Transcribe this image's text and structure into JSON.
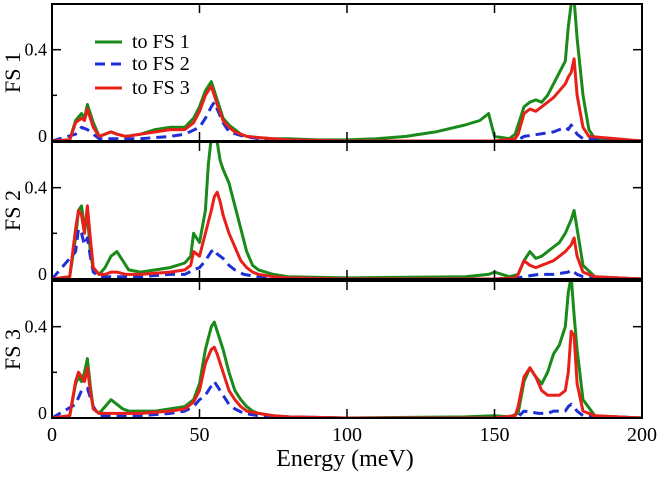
{
  "chart_data": {
    "type": "line",
    "xlabel": "Energy (meV)",
    "xlim": [
      0,
      200
    ],
    "xticks": [
      0,
      50,
      100,
      150,
      200
    ],
    "ylim": [
      0,
      0.6
    ],
    "yticks": [
      0,
      0.4
    ],
    "legend": {
      "location": "top-left of top panel",
      "entries": [
        "to  FS 1",
        "to  FS 2",
        "to  FS 3"
      ]
    },
    "panels": [
      {
        "ylabel": "FS 1",
        "series": [
          {
            "name": "to  FS 1",
            "color": "#1a8a1a",
            "style": "solid",
            "x": [
              0,
              6,
              8,
              10,
              11,
              12,
              14,
              16,
              20,
              22,
              25,
              30,
              35,
              40,
              45,
              48,
              50,
              52,
              54,
              55,
              56,
              58,
              60,
              62,
              64,
              66,
              70,
              75,
              80,
              90,
              100,
              110,
              120,
              130,
              140,
              145,
              148,
              150,
              155,
              157,
              160,
              162,
              164,
              166,
              168,
              170,
              172,
              174,
              175,
              176,
              177,
              178,
              180,
              182,
              184,
              200
            ],
            "y": [
              0,
              0.005,
              0.09,
              0.12,
              0.1,
              0.16,
              0.08,
              0.02,
              0.04,
              0.03,
              0.02,
              0.03,
              0.05,
              0.06,
              0.06,
              0.1,
              0.15,
              0.22,
              0.26,
              0.22,
              0.18,
              0.1,
              0.07,
              0.05,
              0.03,
              0.02,
              0.015,
              0.01,
              0.01,
              0.005,
              0.005,
              0.01,
              0.02,
              0.04,
              0.07,
              0.09,
              0.12,
              0.02,
              0.01,
              0.03,
              0.15,
              0.17,
              0.18,
              0.17,
              0.2,
              0.25,
              0.3,
              0.35,
              0.5,
              0.6,
              0.62,
              0.45,
              0.2,
              0.05,
              0.01,
              0
            ]
          },
          {
            "name": "to  FS 2",
            "color": "#1f2fd6",
            "style": "dashed",
            "x": [
              0,
              8,
              10,
              12,
              14,
              16,
              20,
              30,
              40,
              45,
              50,
              52,
              54,
              55,
              56,
              58,
              60,
              65,
              70,
              80,
              100,
              150,
              158,
              160,
              165,
              170,
              172,
              174,
              175,
              176,
              178,
              180,
              200
            ],
            "y": [
              0,
              0.03,
              0.06,
              0.05,
              0.03,
              0.01,
              0.01,
              0.01,
              0.02,
              0.03,
              0.06,
              0.1,
              0.15,
              0.17,
              0.14,
              0.08,
              0.04,
              0.02,
              0.01,
              0.005,
              0,
              0,
              0.005,
              0.02,
              0.03,
              0.04,
              0.05,
              0.06,
              0.05,
              0.07,
              0.03,
              0.01,
              0
            ]
          },
          {
            "name": "to  FS 3",
            "color": "#e8201a",
            "style": "solid",
            "x": [
              0,
              6,
              8,
              10,
              11,
              12,
              14,
              16,
              20,
              22,
              25,
              30,
              35,
              40,
              45,
              48,
              50,
              52,
              54,
              55,
              56,
              58,
              60,
              62,
              64,
              66,
              70,
              75,
              80,
              100,
              150,
              157,
              158,
              160,
              162,
              164,
              166,
              168,
              170,
              172,
              174,
              175,
              176,
              177,
              178,
              180,
              182,
              200
            ],
            "y": [
              0,
              0.005,
              0.08,
              0.1,
              0.09,
              0.14,
              0.06,
              0.02,
              0.04,
              0.03,
              0.02,
              0.03,
              0.04,
              0.05,
              0.05,
              0.08,
              0.13,
              0.2,
              0.24,
              0.2,
              0.16,
              0.09,
              0.06,
              0.04,
              0.03,
              0.02,
              0.015,
              0.01,
              0.005,
              0,
              0,
              0.01,
              0.03,
              0.12,
              0.14,
              0.13,
              0.15,
              0.17,
              0.19,
              0.22,
              0.25,
              0.28,
              0.3,
              0.36,
              0.2,
              0.06,
              0.02,
              0
            ]
          }
        ]
      },
      {
        "ylabel": "FS 2",
        "series": [
          {
            "name": "to  FS 1",
            "color": "#1a8a1a",
            "style": "solid",
            "x": [
              0,
              6,
              8,
              9,
              10,
              11,
              12,
              13,
              14,
              16,
              18,
              20,
              22,
              24,
              26,
              30,
              35,
              40,
              45,
              47,
              48,
              50,
              52,
              53,
              54,
              55,
              56,
              57,
              58,
              60,
              62,
              64,
              66,
              68,
              70,
              75,
              80,
              100,
              140,
              148,
              150,
              155,
              158,
              160,
              162,
              164,
              166,
              168,
              170,
              172,
              174,
              176,
              177,
              178,
              180,
              184,
              200
            ],
            "y": [
              0,
              0.01,
              0.18,
              0.3,
              0.32,
              0.22,
              0.28,
              0.12,
              0.04,
              0.02,
              0.05,
              0.1,
              0.12,
              0.08,
              0.04,
              0.03,
              0.04,
              0.05,
              0.07,
              0.1,
              0.2,
              0.16,
              0.3,
              0.5,
              0.62,
              0.66,
              0.6,
              0.52,
              0.48,
              0.42,
              0.32,
              0.22,
              0.12,
              0.06,
              0.04,
              0.02,
              0.01,
              0.005,
              0.01,
              0.02,
              0.03,
              0.01,
              0.02,
              0.08,
              0.12,
              0.09,
              0.1,
              0.12,
              0.14,
              0.16,
              0.2,
              0.26,
              0.3,
              0.22,
              0.06,
              0.01,
              0
            ]
          },
          {
            "name": "to  FS 2",
            "color": "#1f2fd6",
            "style": "dashed",
            "x": [
              0,
              8,
              9,
              10,
              11,
              12,
              13,
              14,
              16,
              20,
              25,
              30,
              40,
              45,
              48,
              50,
              52,
              54,
              55,
              56,
              58,
              60,
              62,
              65,
              70,
              80,
              100,
              150,
              158,
              160,
              165,
              170,
              175,
              176,
              178,
              180,
              200
            ],
            "y": [
              0,
              0.12,
              0.22,
              0.2,
              0.15,
              0.18,
              0.1,
              0.03,
              0.01,
              0.01,
              0.01,
              0.01,
              0.02,
              0.02,
              0.04,
              0.05,
              0.08,
              0.12,
              0.13,
              0.11,
              0.09,
              0.06,
              0.04,
              0.02,
              0.01,
              0.005,
              0,
              0,
              0.005,
              0.01,
              0.02,
              0.02,
              0.03,
              0.04,
              0.02,
              0.01,
              0
            ]
          },
          {
            "name": "to  FS 3",
            "color": "#e8201a",
            "style": "solid",
            "x": [
              0,
              6,
              8,
              9,
              10,
              11,
              12,
              13,
              14,
              16,
              18,
              20,
              22,
              25,
              30,
              40,
              45,
              47,
              48,
              50,
              52,
              54,
              55,
              56,
              57,
              58,
              60,
              62,
              64,
              66,
              68,
              70,
              75,
              80,
              100,
              150,
              157,
              158,
              160,
              162,
              164,
              166,
              168,
              170,
              172,
              174,
              176,
              177,
              178,
              180,
              184,
              200
            ],
            "y": [
              0,
              0.01,
              0.22,
              0.3,
              0.28,
              0.2,
              0.32,
              0.18,
              0.05,
              0.02,
              0.02,
              0.03,
              0.03,
              0.02,
              0.02,
              0.03,
              0.04,
              0.06,
              0.12,
              0.1,
              0.2,
              0.3,
              0.36,
              0.38,
              0.34,
              0.28,
              0.2,
              0.14,
              0.08,
              0.05,
              0.03,
              0.02,
              0.01,
              0.005,
              0,
              0,
              0.005,
              0.02,
              0.08,
              0.06,
              0.05,
              0.06,
              0.07,
              0.08,
              0.1,
              0.12,
              0.15,
              0.18,
              0.1,
              0.03,
              0.01,
              0
            ]
          }
        ]
      },
      {
        "ylabel": "FS 3",
        "series": [
          {
            "name": "to  FS 1",
            "color": "#1a8a1a",
            "style": "solid",
            "x": [
              0,
              6,
              8,
              9,
              10,
              11,
              12,
              13,
              14,
              16,
              18,
              20,
              22,
              24,
              26,
              30,
              35,
              40,
              45,
              48,
              50,
              52,
              54,
              55,
              56,
              58,
              60,
              62,
              64,
              66,
              68,
              70,
              75,
              80,
              100,
              140,
              150,
              155,
              158,
              160,
              162,
              164,
              166,
              168,
              170,
              172,
              174,
              175,
              176,
              177,
              178,
              180,
              184,
              200
            ],
            "y": [
              0,
              0.01,
              0.15,
              0.18,
              0.16,
              0.2,
              0.26,
              0.14,
              0.04,
              0.02,
              0.05,
              0.08,
              0.06,
              0.04,
              0.03,
              0.03,
              0.03,
              0.04,
              0.05,
              0.08,
              0.15,
              0.3,
              0.4,
              0.42,
              0.38,
              0.3,
              0.2,
              0.12,
              0.08,
              0.05,
              0.03,
              0.02,
              0.01,
              0.005,
              0,
              0.005,
              0.01,
              0.005,
              0.02,
              0.16,
              0.22,
              0.18,
              0.15,
              0.2,
              0.28,
              0.32,
              0.4,
              0.55,
              0.62,
              0.45,
              0.3,
              0.08,
              0.01,
              0
            ]
          },
          {
            "name": "to  FS 2",
            "color": "#1f2fd6",
            "style": "dashed",
            "x": [
              0,
              8,
              10,
              12,
              14,
              16,
              20,
              30,
              40,
              45,
              48,
              50,
              52,
              54,
              55,
              56,
              58,
              60,
              62,
              65,
              70,
              80,
              100,
              150,
              158,
              160,
              165,
              168,
              170,
              174,
              175,
              176,
              178,
              180,
              200
            ],
            "y": [
              0,
              0.06,
              0.12,
              0.13,
              0.05,
              0.01,
              0.01,
              0.01,
              0.02,
              0.03,
              0.05,
              0.08,
              0.1,
              0.14,
              0.16,
              0.14,
              0.1,
              0.06,
              0.04,
              0.02,
              0.01,
              0.005,
              0,
              0,
              0.005,
              0.03,
              0.02,
              0.02,
              0.03,
              0.03,
              0.05,
              0.06,
              0.03,
              0.01,
              0
            ]
          },
          {
            "name": "to  FS 3",
            "color": "#e8201a",
            "style": "solid",
            "x": [
              0,
              6,
              8,
              9,
              10,
              11,
              12,
              13,
              14,
              16,
              18,
              20,
              22,
              25,
              30,
              40,
              45,
              48,
              50,
              52,
              54,
              55,
              56,
              58,
              60,
              62,
              64,
              66,
              70,
              75,
              80,
              100,
              150,
              157,
              158,
              160,
              162,
              164,
              166,
              168,
              170,
              172,
              174,
              175,
              176,
              177,
              178,
              180,
              184,
              200
            ],
            "y": [
              0,
              0.01,
              0.16,
              0.2,
              0.18,
              0.16,
              0.22,
              0.12,
              0.04,
              0.02,
              0.02,
              0.02,
              0.02,
              0.02,
              0.02,
              0.03,
              0.04,
              0.07,
              0.12,
              0.24,
              0.3,
              0.31,
              0.28,
              0.2,
              0.12,
              0.08,
              0.05,
              0.03,
              0.02,
              0.01,
              0.005,
              0,
              0,
              0.01,
              0.05,
              0.18,
              0.22,
              0.18,
              0.12,
              0.1,
              0.1,
              0.1,
              0.12,
              0.2,
              0.38,
              0.36,
              0.15,
              0.03,
              0.01,
              0
            ]
          }
        ]
      }
    ]
  }
}
